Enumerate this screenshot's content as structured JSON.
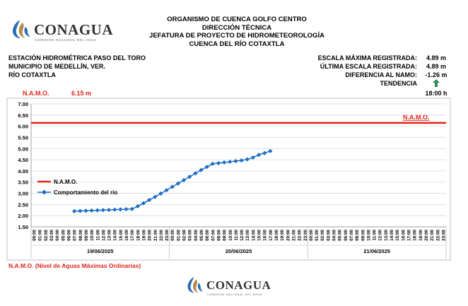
{
  "header": {
    "lines": [
      "ORGANISMO DE CUENCA GOLFO CENTRO",
      "DIRECCIÓN TÉCNICA",
      "JEFATURA DE PROYECTO DE HIDROMETEOROLOGÍA",
      "CUENCA DEL RÍO COTAXTLA"
    ]
  },
  "logo": {
    "name": "CONAGUA",
    "subtitle": "COMISIÓN NACIONAL DEL AGUA",
    "icon": "conagua-wave-logo"
  },
  "station": {
    "lines": [
      "ESTACIÓN HIDROMÉTRICA PASO DEL TORO",
      "MUNICIPIO DE MEDELLÍN, VER.",
      "RÍO COTAXTLA"
    ]
  },
  "stats": [
    {
      "label": "ESCALA MÁXIMA REGISTRADA:",
      "value": "4.89 m"
    },
    {
      "label": "ÚLTIMA ESCALA REGISTRADA:",
      "value": "4.89 m"
    },
    {
      "label": "DIFERENCIA AL NAMO:",
      "value": "-1.26 m"
    },
    {
      "label": "TENDENCIA",
      "value": "",
      "icon": "up-arrow-icon",
      "icon_color": "#2e8b57"
    }
  ],
  "namo_row": {
    "label": "N.A.M.O.",
    "value": "6.15 m",
    "time": "18:00 h"
  },
  "footnote": "N.A.M.O. (Nivel de Aguas Máximas Ordinarias)",
  "colors": {
    "namo": "#e2231a",
    "river": "#1f6fc6",
    "text_red": "#e2231a"
  },
  "chart_data": {
    "type": "line",
    "ylim": [
      1.5,
      7.0
    ],
    "yticks": [
      "7.00",
      "6.50",
      "6.00",
      "5.50",
      "5.00",
      "4.50",
      "4.00",
      "3.50",
      "3.00",
      "2.50",
      "2.00",
      "1.50"
    ],
    "hours": [
      "00:00",
      "01:00",
      "02:00",
      "03:00",
      "04:00",
      "05:00",
      "06:00",
      "07:00",
      "08:00",
      "09:00",
      "10:00",
      "11:00",
      "12:00",
      "13:00",
      "14:00",
      "15:00",
      "16:00",
      "17:00",
      "18:00",
      "19:00",
      "20:00",
      "21:00",
      "22:00",
      "23:00"
    ],
    "dates": [
      "19/06/2025",
      "20/06/2025",
      "21/06/2025"
    ],
    "grid": "horizontal",
    "legend": [
      {
        "name": "N.A.M.O.",
        "color": "#e2231a"
      },
      {
        "name": "Comportamiento del río",
        "color": "#1f6fc6"
      }
    ],
    "namo_label": "N.A.M.O.",
    "namo_value": 6.15,
    "river_start_hour_index": 7,
    "river_values": [
      2.2,
      2.21,
      2.22,
      2.23,
      2.24,
      2.25,
      2.26,
      2.27,
      2.28,
      2.29,
      2.3,
      2.42,
      2.56,
      2.7,
      2.84,
      2.99,
      3.14,
      3.29,
      3.44,
      3.59,
      3.74,
      3.89,
      4.04,
      4.18,
      4.32,
      4.35,
      4.38,
      4.41,
      4.44,
      4.47,
      4.52,
      4.6,
      4.72,
      4.8,
      4.89
    ]
  }
}
